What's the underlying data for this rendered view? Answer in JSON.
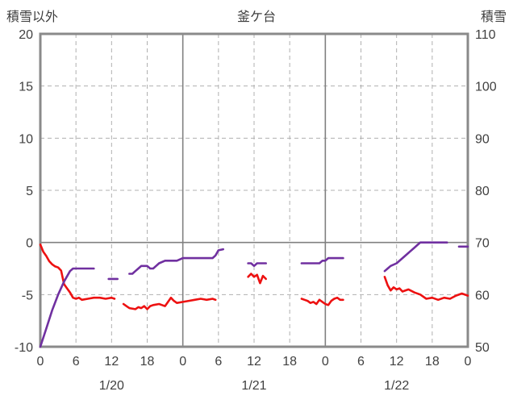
{
  "chart_data": {
    "type": "line",
    "title": "釜ケ台",
    "left_axis": {
      "label": "積雪以外",
      "min": -10,
      "max": 20,
      "ticks": [
        20,
        15,
        10,
        5,
        0,
        -5,
        -10
      ]
    },
    "right_axis": {
      "label": "積雪",
      "min": 50,
      "max": 110,
      "ticks": [
        110,
        100,
        90,
        80,
        70,
        60,
        50
      ]
    },
    "x_axis": {
      "min_hour": 0,
      "max_hour": 72,
      "tick_step_hours": 6,
      "hour_labels": [
        "0",
        "6",
        "12",
        "18",
        "0",
        "6",
        "12",
        "18",
        "0",
        "6",
        "12",
        "18",
        "0"
      ],
      "date_labels": [
        {
          "label": "1/20",
          "hour": 12
        },
        {
          "label": "1/21",
          "hour": 36
        },
        {
          "label": "1/22",
          "hour": 60
        }
      ]
    },
    "style": {
      "text_color": "#404040",
      "frame_color": "#8a8a8a",
      "solid_grid_color": "#808080",
      "dashed_grid_color": "#b0b0b0"
    },
    "series": [
      {
        "name": "積雪以外",
        "axis": "left",
        "color": "#ed1111",
        "segments": [
          [
            [
              0,
              -0.2
            ],
            [
              0.5,
              -0.9
            ],
            [
              1,
              -1.3
            ],
            [
              1.5,
              -1.8
            ],
            [
              2,
              -2.1
            ],
            [
              2.5,
              -2.3
            ],
            [
              3,
              -2.4
            ],
            [
              3.5,
              -2.7
            ],
            [
              4,
              -4.0
            ],
            [
              4.5,
              -4.4
            ],
            [
              5,
              -4.8
            ],
            [
              5.5,
              -5.3
            ],
            [
              6,
              -5.4
            ],
            [
              6.5,
              -5.3
            ],
            [
              7,
              -5.5
            ],
            [
              8,
              -5.4
            ],
            [
              9,
              -5.3
            ],
            [
              10,
              -5.3
            ],
            [
              11,
              -5.4
            ],
            [
              12,
              -5.3
            ],
            [
              12.5,
              -5.4
            ]
          ],
          [
            [
              14,
              -5.9
            ],
            [
              14.5,
              -6.1
            ],
            [
              15,
              -6.3
            ],
            [
              16,
              -6.4
            ],
            [
              16.5,
              -6.2
            ],
            [
              17,
              -6.3
            ],
            [
              17.5,
              -6.1
            ],
            [
              18,
              -6.4
            ],
            [
              18.5,
              -6.1
            ],
            [
              19,
              -6.0
            ],
            [
              20,
              -5.9
            ],
            [
              20.5,
              -6.0
            ],
            [
              21,
              -6.1
            ],
            [
              22,
              -5.3
            ],
            [
              22.5,
              -5.6
            ],
            [
              23,
              -5.8
            ],
            [
              24,
              -5.7
            ],
            [
              25,
              -5.6
            ],
            [
              26,
              -5.5
            ],
            [
              27,
              -5.4
            ],
            [
              28,
              -5.5
            ],
            [
              29,
              -5.4
            ],
            [
              29.5,
              -5.5
            ]
          ],
          [
            [
              35,
              -3.3
            ],
            [
              35.5,
              -3.0
            ],
            [
              36,
              -3.3
            ],
            [
              36.5,
              -3.1
            ],
            [
              37,
              -3.9
            ],
            [
              37.5,
              -3.2
            ],
            [
              38,
              -3.5
            ]
          ],
          [
            [
              44,
              -5.4
            ],
            [
              44.5,
              -5.5
            ],
            [
              45,
              -5.6
            ],
            [
              45.5,
              -5.8
            ],
            [
              46,
              -5.7
            ],
            [
              46.5,
              -5.9
            ],
            [
              47,
              -5.5
            ],
            [
              47.5,
              -5.7
            ],
            [
              48,
              -5.9
            ],
            [
              48.5,
              -6.0
            ],
            [
              49,
              -5.6
            ],
            [
              49.5,
              -5.4
            ],
            [
              50,
              -5.3
            ],
            [
              50.5,
              -5.5
            ],
            [
              51,
              -5.5
            ]
          ],
          [
            [
              58,
              -3.3
            ],
            [
              58.5,
              -4.1
            ],
            [
              59,
              -4.6
            ],
            [
              59.5,
              -4.3
            ],
            [
              60,
              -4.5
            ],
            [
              60.5,
              -4.4
            ],
            [
              61,
              -4.7
            ],
            [
              62,
              -4.5
            ],
            [
              63,
              -4.8
            ],
            [
              64,
              -5.0
            ],
            [
              65,
              -5.4
            ],
            [
              66,
              -5.3
            ],
            [
              67,
              -5.5
            ],
            [
              68,
              -5.3
            ],
            [
              69,
              -5.4
            ],
            [
              70,
              -5.1
            ],
            [
              71,
              -4.9
            ],
            [
              72,
              -5.1
            ]
          ]
        ]
      },
      {
        "name": "積雪",
        "axis": "right",
        "color": "#7030a0",
        "segments": [
          [
            [
              0,
              50
            ],
            [
              1,
              53.5
            ],
            [
              2,
              57
            ],
            [
              3,
              60
            ],
            [
              4,
              62.5
            ],
            [
              4.5,
              63.5
            ],
            [
              5,
              64.5
            ],
            [
              5.5,
              65
            ],
            [
              6,
              65
            ],
            [
              7,
              65
            ],
            [
              8,
              65
            ],
            [
              9,
              65
            ]
          ],
          [
            [
              11.5,
              63
            ],
            [
              13,
              63
            ]
          ],
          [
            [
              15,
              64
            ],
            [
              15.5,
              64
            ],
            [
              16,
              64.5
            ],
            [
              16.5,
              65
            ],
            [
              17,
              65.5
            ],
            [
              18,
              65.5
            ],
            [
              18.5,
              65
            ],
            [
              19,
              65
            ],
            [
              19.5,
              65.5
            ],
            [
              20,
              66
            ],
            [
              21,
              66.5
            ],
            [
              22,
              66.5
            ],
            [
              23,
              66.5
            ],
            [
              24,
              67
            ],
            [
              25,
              67
            ],
            [
              26,
              67
            ],
            [
              27,
              67
            ],
            [
              28,
              67
            ],
            [
              29,
              67
            ],
            [
              29.5,
              67.5
            ],
            [
              30,
              68.5
            ],
            [
              30.8,
              68.7
            ]
          ],
          [
            [
              35,
              66
            ],
            [
              35.5,
              66
            ],
            [
              36,
              65.5
            ],
            [
              36.5,
              66
            ],
            [
              37.5,
              66
            ],
            [
              38,
              66
            ]
          ],
          [
            [
              44,
              66
            ],
            [
              45,
              66
            ],
            [
              46,
              66
            ],
            [
              47,
              66
            ],
            [
              47.5,
              66.5
            ],
            [
              48,
              66.5
            ],
            [
              48.5,
              67
            ],
            [
              49,
              67
            ],
            [
              50,
              67
            ],
            [
              51,
              67
            ]
          ],
          [
            [
              58,
              64.5
            ],
            [
              58.5,
              65
            ],
            [
              59,
              65.5
            ],
            [
              60,
              66
            ],
            [
              61,
              67
            ],
            [
              62,
              68
            ],
            [
              63,
              69
            ],
            [
              63.5,
              69.5
            ],
            [
              64,
              70
            ],
            [
              65,
              70
            ],
            [
              66,
              70
            ],
            [
              67,
              70
            ],
            [
              68,
              70
            ],
            [
              68.5,
              70
            ]
          ],
          [
            [
              70.5,
              69.2
            ],
            [
              72,
              69.2
            ]
          ]
        ]
      }
    ]
  }
}
